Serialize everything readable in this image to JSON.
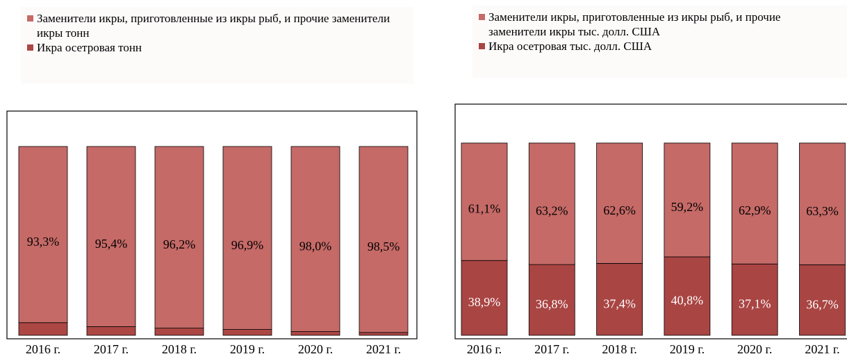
{
  "chart_data": [
    {
      "type": "stacked_bar",
      "categories": [
        "2016 г.",
        "2017 г.",
        "2018 г.",
        "2019 г.",
        "2020 г.",
        "2021 г."
      ],
      "series": [
        {
          "name": "Заменители икры, приготовленные из икры рыб, и прочие заменители икры тонн",
          "color": "#c56a67",
          "values": [
            93.3,
            95.4,
            96.2,
            96.9,
            98.0,
            98.5
          ],
          "value_labels": [
            "93,3%",
            "95,4%",
            "96,2%",
            "96,9%",
            "98,0%",
            "98,5%"
          ]
        },
        {
          "name": "Икра осетровая тонн",
          "color": "#ad4744",
          "values": [
            6.7,
            4.6,
            3.8,
            3.1,
            2.0,
            1.5
          ],
          "value_labels": [
            "6,7%",
            "4,6%",
            "3,8%",
            "3,1%",
            "2,0%",
            "1,5%"
          ]
        }
      ]
    },
    {
      "type": "stacked_bar",
      "categories": [
        "2016 г.",
        "2017 г.",
        "2018 г.",
        "2019 г.",
        "2020 г.",
        "2021 г."
      ],
      "series": [
        {
          "name": "Заменители икры, приготовленные из икры рыб, и прочие заменители икры тыс. долл. США",
          "color": "#c56a67",
          "values": [
            61.1,
            63.2,
            62.6,
            59.2,
            62.9,
            63.3
          ],
          "value_labels": [
            "61,1%",
            "63,2%",
            "62,6%",
            "59,2%",
            "62,9%",
            "63,3%"
          ]
        },
        {
          "name": "Икра осетровая тыс. долл. США",
          "color": "#a94543",
          "values": [
            38.9,
            36.8,
            37.4,
            40.8,
            37.1,
            36.7
          ],
          "value_labels": [
            "38,9%",
            "36,8%",
            "37,4%",
            "40,8%",
            "37,1%",
            "36,7%"
          ]
        }
      ]
    }
  ]
}
